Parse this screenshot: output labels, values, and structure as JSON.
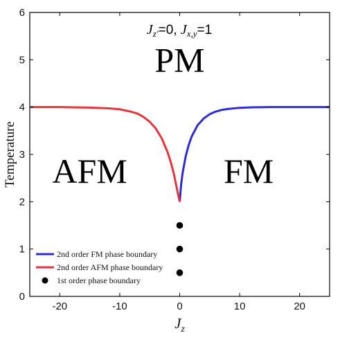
{
  "chart_data": {
    "type": "line",
    "title": "",
    "annotation": {
      "j_zprime_sym": "J",
      "j_zprime_sub": "z′",
      "j_zprime_val": "=0, ",
      "j_xy_sym": "J",
      "j_xy_sub": "x,y",
      "j_xy_val": "=1"
    },
    "xlabel_symbol": "J",
    "xlabel_subscript": "z",
    "ylabel": "Temperature",
    "xlim": [
      -25,
      25
    ],
    "ylim": [
      0,
      6
    ],
    "x_ticks": [
      -20,
      -10,
      0,
      10,
      20
    ],
    "x_tick_labels": [
      "-20",
      "-10",
      "0",
      "10",
      "20"
    ],
    "y_ticks": [
      0,
      1,
      2,
      3,
      4,
      5,
      6
    ],
    "y_tick_labels": [
      "0",
      "1",
      "2",
      "3",
      "4",
      "5",
      "6"
    ],
    "regions": [
      {
        "label": "PM",
        "x": 0,
        "y": 4.75
      },
      {
        "label": "AFM",
        "x": -15,
        "y": 2.4
      },
      {
        "label": "FM",
        "x": 11.5,
        "y": 2.4
      }
    ],
    "series": [
      {
        "name": "2nd order FM phase boundary",
        "kind": "line",
        "color": "#2b2bd9",
        "x": [
          0,
          0.25,
          0.5,
          1,
          1.5,
          2,
          3,
          4,
          5,
          6,
          7,
          8,
          10,
          12,
          15,
          20,
          25
        ],
        "y": [
          2.0,
          2.38,
          2.62,
          2.96,
          3.2,
          3.38,
          3.62,
          3.76,
          3.85,
          3.905,
          3.94,
          3.96,
          3.985,
          3.995,
          4.0,
          4.0,
          4.0
        ]
      },
      {
        "name": "2nd order AFM phase boundary",
        "kind": "line",
        "color": "#e8333b",
        "x": [
          -25,
          -20,
          -15,
          -12,
          -10,
          -8,
          -7,
          -6,
          -5,
          -4,
          -3,
          -2,
          -1.5,
          -1,
          -0.5,
          -0.25,
          0
        ],
        "y": [
          4.0,
          4.0,
          3.99,
          3.975,
          3.955,
          3.9,
          3.86,
          3.79,
          3.69,
          3.55,
          3.34,
          3.04,
          2.84,
          2.6,
          2.3,
          2.14,
          2.0
        ]
      },
      {
        "name": "1st order phase boundary",
        "kind": "scatter",
        "color": "#000000",
        "x": [
          0,
          0,
          0
        ],
        "y": [
          1.5,
          1.0,
          0.5
        ]
      }
    ],
    "legend_position": "bottom-left",
    "grid": false
  }
}
